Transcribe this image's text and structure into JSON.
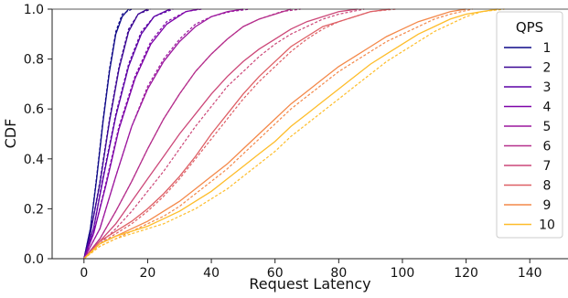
{
  "chart_data": {
    "type": "line",
    "title": "",
    "xlabel": "Request Latency",
    "ylabel": "CDF",
    "xlim": [
      -10,
      152
    ],
    "ylim": [
      0,
      1.0
    ],
    "xticks": [
      0,
      20,
      40,
      60,
      80,
      100,
      120,
      140
    ],
    "yticks": [
      0.0,
      0.2,
      0.4,
      0.6,
      0.8,
      1.0
    ],
    "ytick_labels": [
      "0.0",
      "0.2",
      "0.4",
      "0.6",
      "0.8",
      "1.0"
    ],
    "grid": false,
    "legend": {
      "title": "QPS",
      "placement": "right"
    },
    "series": [
      {
        "name": "1",
        "color": "#0d0887",
        "solid": [
          [
            0,
            0
          ],
          [
            2,
            0.12
          ],
          [
            4,
            0.32
          ],
          [
            6,
            0.55
          ],
          [
            8,
            0.75
          ],
          [
            10,
            0.9
          ],
          [
            12,
            0.97
          ],
          [
            14,
            1.0
          ]
        ],
        "dashed": [
          [
            0,
            0
          ],
          [
            2,
            0.12
          ],
          [
            4,
            0.33
          ],
          [
            6,
            0.56
          ],
          [
            8,
            0.76
          ],
          [
            10,
            0.91
          ],
          [
            12,
            0.98
          ],
          [
            15,
            1.0
          ]
        ]
      },
      {
        "name": "2",
        "color": "#3a0593",
        "solid": [
          [
            0,
            0
          ],
          [
            2,
            0.1
          ],
          [
            5,
            0.3
          ],
          [
            8,
            0.55
          ],
          [
            11,
            0.76
          ],
          [
            14,
            0.91
          ],
          [
            17,
            0.98
          ],
          [
            20,
            1.0
          ]
        ],
        "dashed": [
          [
            0,
            0
          ],
          [
            2,
            0.1
          ],
          [
            5,
            0.31
          ],
          [
            8,
            0.56
          ],
          [
            11,
            0.77
          ],
          [
            14,
            0.92
          ],
          [
            17,
            0.98
          ],
          [
            21,
            1.0
          ]
        ]
      },
      {
        "name": "3",
        "color": "#5c01a6",
        "solid": [
          [
            0,
            0
          ],
          [
            3,
            0.12
          ],
          [
            6,
            0.32
          ],
          [
            10,
            0.57
          ],
          [
            14,
            0.77
          ],
          [
            18,
            0.9
          ],
          [
            22,
            0.97
          ],
          [
            27,
            1.0
          ]
        ],
        "dashed": [
          [
            0,
            0
          ],
          [
            3,
            0.12
          ],
          [
            6,
            0.33
          ],
          [
            10,
            0.58
          ],
          [
            14,
            0.78
          ],
          [
            18,
            0.91
          ],
          [
            22,
            0.97
          ],
          [
            28,
            1.0
          ]
        ]
      },
      {
        "name": "4",
        "color": "#7e03a8",
        "solid": [
          [
            0,
            0
          ],
          [
            3,
            0.1
          ],
          [
            7,
            0.3
          ],
          [
            11,
            0.52
          ],
          [
            16,
            0.72
          ],
          [
            21,
            0.86
          ],
          [
            26,
            0.94
          ],
          [
            32,
            0.99
          ],
          [
            36,
            1.0
          ]
        ],
        "dashed": [
          [
            0,
            0
          ],
          [
            3,
            0.1
          ],
          [
            7,
            0.31
          ],
          [
            11,
            0.53
          ],
          [
            16,
            0.73
          ],
          [
            21,
            0.87
          ],
          [
            26,
            0.95
          ],
          [
            32,
            0.99
          ],
          [
            37,
            1.0
          ]
        ]
      },
      {
        "name": "5",
        "color": "#9c179e",
        "solid": [
          [
            0,
            0
          ],
          [
            5,
            0.12
          ],
          [
            10,
            0.33
          ],
          [
            15,
            0.53
          ],
          [
            20,
            0.68
          ],
          [
            25,
            0.79
          ],
          [
            30,
            0.87
          ],
          [
            35,
            0.93
          ],
          [
            40,
            0.97
          ],
          [
            45,
            0.99
          ],
          [
            50,
            1.0
          ]
        ],
        "dashed": [
          [
            0,
            0
          ],
          [
            5,
            0.12
          ],
          [
            10,
            0.33
          ],
          [
            15,
            0.53
          ],
          [
            20,
            0.69
          ],
          [
            25,
            0.8
          ],
          [
            30,
            0.88
          ],
          [
            35,
            0.94
          ],
          [
            40,
            0.97
          ],
          [
            46,
            0.99
          ],
          [
            52,
            1.0
          ]
        ]
      },
      {
        "name": "6",
        "color": "#b52f8c",
        "solid": [
          [
            0,
            0
          ],
          [
            5,
            0.08
          ],
          [
            10,
            0.19
          ],
          [
            15,
            0.31
          ],
          [
            20,
            0.44
          ],
          [
            25,
            0.56
          ],
          [
            30,
            0.66
          ],
          [
            35,
            0.75
          ],
          [
            40,
            0.82
          ],
          [
            45,
            0.88
          ],
          [
            50,
            0.93
          ],
          [
            55,
            0.96
          ],
          [
            60,
            0.98
          ],
          [
            65,
            1.0
          ]
        ],
        "dashed": [
          [
            0,
            0
          ],
          [
            5,
            0.08
          ],
          [
            10,
            0.19
          ],
          [
            15,
            0.31
          ],
          [
            20,
            0.44
          ],
          [
            25,
            0.56
          ],
          [
            30,
            0.66
          ],
          [
            35,
            0.75
          ],
          [
            40,
            0.82
          ],
          [
            45,
            0.88
          ],
          [
            50,
            0.93
          ],
          [
            55,
            0.96
          ],
          [
            62,
            0.99
          ],
          [
            68,
            1.0
          ]
        ]
      },
      {
        "name": "7",
        "color": "#cc4778",
        "solid": [
          [
            0,
            0
          ],
          [
            5,
            0.07
          ],
          [
            10,
            0.14
          ],
          [
            15,
            0.23
          ],
          [
            20,
            0.32
          ],
          [
            25,
            0.41
          ],
          [
            30,
            0.5
          ],
          [
            35,
            0.58
          ],
          [
            40,
            0.66
          ],
          [
            45,
            0.73
          ],
          [
            50,
            0.79
          ],
          [
            55,
            0.84
          ],
          [
            60,
            0.88
          ],
          [
            65,
            0.92
          ],
          [
            70,
            0.95
          ],
          [
            75,
            0.97
          ],
          [
            80,
            0.99
          ],
          [
            86,
            1.0
          ]
        ],
        "dashed": [
          [
            0,
            0
          ],
          [
            5,
            0.06
          ],
          [
            10,
            0.12
          ],
          [
            15,
            0.19
          ],
          [
            20,
            0.27
          ],
          [
            25,
            0.35
          ],
          [
            30,
            0.44
          ],
          [
            35,
            0.53
          ],
          [
            40,
            0.61
          ],
          [
            45,
            0.69
          ],
          [
            50,
            0.75
          ],
          [
            55,
            0.81
          ],
          [
            60,
            0.86
          ],
          [
            65,
            0.9
          ],
          [
            70,
            0.93
          ],
          [
            75,
            0.96
          ],
          [
            80,
            0.98
          ],
          [
            88,
            1.0
          ]
        ]
      },
      {
        "name": "8",
        "color": "#de5f65",
        "solid": [
          [
            0,
            0
          ],
          [
            5,
            0.07
          ],
          [
            10,
            0.11
          ],
          [
            15,
            0.15
          ],
          [
            20,
            0.2
          ],
          [
            25,
            0.26
          ],
          [
            30,
            0.33
          ],
          [
            35,
            0.41
          ],
          [
            40,
            0.5
          ],
          [
            45,
            0.58
          ],
          [
            50,
            0.66
          ],
          [
            55,
            0.73
          ],
          [
            60,
            0.79
          ],
          [
            65,
            0.85
          ],
          [
            70,
            0.89
          ],
          [
            75,
            0.93
          ],
          [
            80,
            0.95
          ],
          [
            85,
            0.97
          ],
          [
            90,
            0.99
          ],
          [
            96,
            1.0
          ]
        ],
        "dashed": [
          [
            0,
            0
          ],
          [
            5,
            0.06
          ],
          [
            10,
            0.1
          ],
          [
            15,
            0.14
          ],
          [
            20,
            0.19
          ],
          [
            25,
            0.25
          ],
          [
            30,
            0.32
          ],
          [
            35,
            0.4
          ],
          [
            40,
            0.48
          ],
          [
            45,
            0.56
          ],
          [
            50,
            0.64
          ],
          [
            55,
            0.71
          ],
          [
            60,
            0.77
          ],
          [
            65,
            0.83
          ],
          [
            70,
            0.88
          ],
          [
            75,
            0.92
          ],
          [
            80,
            0.95
          ],
          [
            85,
            0.97
          ],
          [
            90,
            0.99
          ],
          [
            98,
            1.0
          ]
        ]
      },
      {
        "name": "9",
        "color": "#f48849",
        "solid": [
          [
            0,
            0
          ],
          [
            5,
            0.06
          ],
          [
            10,
            0.09
          ],
          [
            15,
            0.12
          ],
          [
            20,
            0.15
          ],
          [
            25,
            0.19
          ],
          [
            30,
            0.23
          ],
          [
            35,
            0.28
          ],
          [
            40,
            0.33
          ],
          [
            45,
            0.38
          ],
          [
            50,
            0.44
          ],
          [
            55,
            0.5
          ],
          [
            60,
            0.56
          ],
          [
            65,
            0.62
          ],
          [
            70,
            0.67
          ],
          [
            75,
            0.72
          ],
          [
            80,
            0.77
          ],
          [
            85,
            0.81
          ],
          [
            90,
            0.85
          ],
          [
            95,
            0.89
          ],
          [
            100,
            0.92
          ],
          [
            105,
            0.95
          ],
          [
            110,
            0.97
          ],
          [
            115,
            0.99
          ],
          [
            120,
            1.0
          ]
        ],
        "dashed": [
          [
            0,
            0
          ],
          [
            5,
            0.05
          ],
          [
            10,
            0.08
          ],
          [
            15,
            0.11
          ],
          [
            20,
            0.14
          ],
          [
            25,
            0.17
          ],
          [
            30,
            0.21
          ],
          [
            35,
            0.26
          ],
          [
            40,
            0.31
          ],
          [
            45,
            0.36
          ],
          [
            50,
            0.42
          ],
          [
            55,
            0.48
          ],
          [
            60,
            0.54
          ],
          [
            65,
            0.6
          ],
          [
            70,
            0.65
          ],
          [
            75,
            0.7
          ],
          [
            80,
            0.75
          ],
          [
            85,
            0.79
          ],
          [
            90,
            0.83
          ],
          [
            95,
            0.87
          ],
          [
            100,
            0.9
          ],
          [
            105,
            0.93
          ],
          [
            110,
            0.96
          ],
          [
            115,
            0.98
          ],
          [
            122,
            1.0
          ]
        ]
      },
      {
        "name": "10",
        "color": "#febd2a",
        "solid": [
          [
            0,
            0
          ],
          [
            5,
            0.06
          ],
          [
            10,
            0.09
          ],
          [
            15,
            0.11
          ],
          [
            20,
            0.13
          ],
          [
            25,
            0.16
          ],
          [
            30,
            0.19
          ],
          [
            35,
            0.23
          ],
          [
            40,
            0.27
          ],
          [
            45,
            0.32
          ],
          [
            50,
            0.37
          ],
          [
            55,
            0.42
          ],
          [
            60,
            0.47
          ],
          [
            65,
            0.53
          ],
          [
            70,
            0.58
          ],
          [
            75,
            0.63
          ],
          [
            80,
            0.68
          ],
          [
            85,
            0.73
          ],
          [
            90,
            0.78
          ],
          [
            95,
            0.82
          ],
          [
            100,
            0.86
          ],
          [
            105,
            0.9
          ],
          [
            110,
            0.93
          ],
          [
            115,
            0.96
          ],
          [
            120,
            0.98
          ],
          [
            125,
            0.99
          ],
          [
            130,
            1.0
          ]
        ],
        "dashed": [
          [
            0,
            0
          ],
          [
            5,
            0.05
          ],
          [
            10,
            0.08
          ],
          [
            15,
            0.1
          ],
          [
            20,
            0.12
          ],
          [
            25,
            0.14
          ],
          [
            30,
            0.17
          ],
          [
            35,
            0.2
          ],
          [
            40,
            0.24
          ],
          [
            45,
            0.28
          ],
          [
            50,
            0.33
          ],
          [
            55,
            0.38
          ],
          [
            60,
            0.43
          ],
          [
            65,
            0.49
          ],
          [
            70,
            0.54
          ],
          [
            75,
            0.59
          ],
          [
            80,
            0.64
          ],
          [
            85,
            0.69
          ],
          [
            90,
            0.74
          ],
          [
            95,
            0.79
          ],
          [
            100,
            0.83
          ],
          [
            105,
            0.87
          ],
          [
            110,
            0.91
          ],
          [
            115,
            0.94
          ],
          [
            120,
            0.97
          ],
          [
            125,
            0.99
          ],
          [
            132,
            1.0
          ]
        ]
      }
    ]
  }
}
